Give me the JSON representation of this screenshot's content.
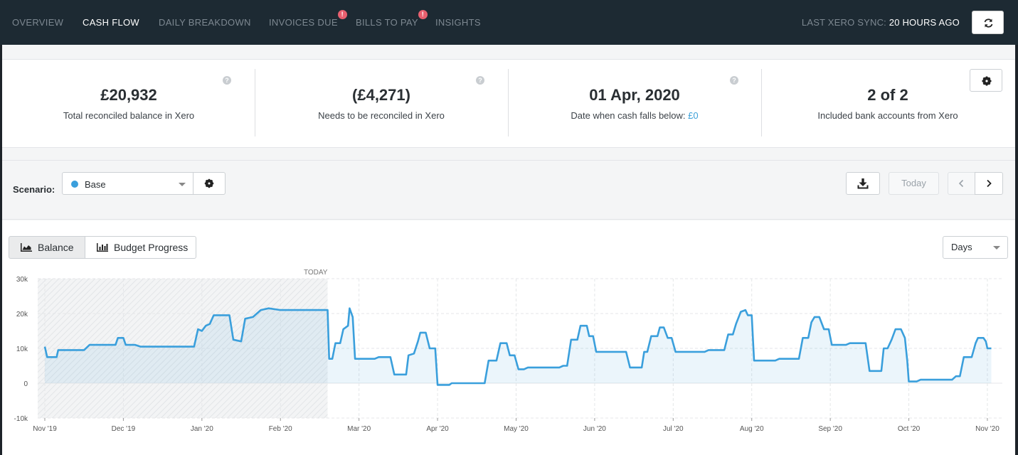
{
  "nav": {
    "items": [
      {
        "label": "OVERVIEW",
        "active": false,
        "alert": false
      },
      {
        "label": "CASH FLOW",
        "active": true,
        "alert": false
      },
      {
        "label": "DAILY BREAKDOWN",
        "active": false,
        "alert": false
      },
      {
        "label": "INVOICES DUE",
        "active": false,
        "alert": true
      },
      {
        "label": "BILLS TO PAY",
        "active": false,
        "alert": true
      },
      {
        "label": "INSIGHTS",
        "active": false,
        "alert": false
      }
    ],
    "alert_symbol": "!",
    "sync_label": "LAST XERO SYNC:",
    "sync_value": "20 HOURS AGO"
  },
  "stats": [
    {
      "value": "£20,932",
      "label": "Total reconciled balance in Xero"
    },
    {
      "value": "(£4,271)",
      "label": "Needs to be reconciled in Xero"
    },
    {
      "value": "01 Apr, 2020",
      "label": "Date when cash falls below:",
      "link": "£0"
    },
    {
      "value": "2 of 2",
      "label": "Included bank accounts from Xero"
    }
  ],
  "help_symbol": "?",
  "scenario": {
    "label": "Scenario:",
    "selected": "Base",
    "dot_color": "#3a9fdc"
  },
  "toolbar": {
    "today_label": "Today"
  },
  "tabs": {
    "balance": "Balance",
    "budget": "Budget Progress"
  },
  "period": {
    "selected": "Days"
  },
  "colors": {
    "accent": "#3a9fdc",
    "nav_bg": "#1d2a33",
    "alert": "#e8606f"
  },
  "chart_data": {
    "type": "area",
    "title": "",
    "xlabel": "",
    "ylabel": "",
    "ylim": [
      -10000,
      30000
    ],
    "yticks": [
      -10000,
      0,
      10000,
      20000,
      30000
    ],
    "ytick_labels": [
      "-10k",
      "0",
      "10k",
      "20k",
      "30k"
    ],
    "xtick_labels": [
      "Nov '19",
      "Dec '19",
      "Jan '20",
      "Feb '20",
      "Mar '20",
      "Apr '20",
      "May '20",
      "Jun '20",
      "Jul '20",
      "Aug '20",
      "Sep '20",
      "Oct '20",
      "Nov '20"
    ],
    "today_label": "TODAY",
    "today_index": 3.6,
    "xlim": [
      0,
      12.1
    ],
    "series": [
      {
        "name": "Balance",
        "points": [
          [
            0.0,
            10500
          ],
          [
            0.03,
            7500
          ],
          [
            0.15,
            7500
          ],
          [
            0.17,
            9500
          ],
          [
            0.5,
            9500
          ],
          [
            0.57,
            11000
          ],
          [
            0.9,
            11000
          ],
          [
            0.93,
            13000
          ],
          [
            1.0,
            13000
          ],
          [
            1.03,
            11000
          ],
          [
            1.15,
            11000
          ],
          [
            1.22,
            10500
          ],
          [
            1.9,
            10500
          ],
          [
            1.95,
            15500
          ],
          [
            2.0,
            15000
          ],
          [
            2.05,
            16500
          ],
          [
            2.1,
            17000
          ],
          [
            2.15,
            19500
          ],
          [
            2.35,
            19500
          ],
          [
            2.4,
            12500
          ],
          [
            2.5,
            12000
          ],
          [
            2.55,
            18500
          ],
          [
            2.65,
            19000
          ],
          [
            2.75,
            21000
          ],
          [
            2.85,
            21500
          ],
          [
            3.0,
            21000
          ],
          [
            3.6,
            21000
          ],
          [
            3.62,
            7000
          ],
          [
            3.66,
            7000
          ],
          [
            3.7,
            11500
          ],
          [
            3.76,
            11500
          ],
          [
            3.8,
            15500
          ],
          [
            3.86,
            16500
          ],
          [
            3.88,
            21500
          ],
          [
            3.92,
            19000
          ],
          [
            3.95,
            7000
          ],
          [
            4.2,
            7000
          ],
          [
            4.25,
            7500
          ],
          [
            4.4,
            7500
          ],
          [
            4.45,
            2500
          ],
          [
            4.6,
            2500
          ],
          [
            4.63,
            8000
          ],
          [
            4.7,
            8500
          ],
          [
            4.75,
            12000
          ],
          [
            4.78,
            14500
          ],
          [
            4.85,
            14500
          ],
          [
            4.9,
            10000
          ],
          [
            4.97,
            10000
          ],
          [
            5.0,
            -500
          ],
          [
            5.15,
            -500
          ],
          [
            5.18,
            0
          ],
          [
            5.6,
            0
          ],
          [
            5.65,
            6500
          ],
          [
            5.75,
            6500
          ],
          [
            5.8,
            11500
          ],
          [
            5.88,
            11500
          ],
          [
            5.92,
            8000
          ],
          [
            5.98,
            8000
          ],
          [
            6.03,
            4000
          ],
          [
            6.1,
            4000
          ],
          [
            6.15,
            4500
          ],
          [
            6.55,
            4500
          ],
          [
            6.6,
            5000
          ],
          [
            6.65,
            5000
          ],
          [
            6.7,
            12500
          ],
          [
            6.78,
            12500
          ],
          [
            6.82,
            16500
          ],
          [
            6.9,
            16500
          ],
          [
            6.93,
            13500
          ],
          [
            6.98,
            13500
          ],
          [
            7.02,
            9000
          ],
          [
            7.4,
            9000
          ],
          [
            7.45,
            4500
          ],
          [
            7.6,
            4500
          ],
          [
            7.63,
            9000
          ],
          [
            7.67,
            9000
          ],
          [
            7.72,
            13500
          ],
          [
            7.8,
            13500
          ],
          [
            7.83,
            16000
          ],
          [
            7.88,
            16000
          ],
          [
            7.93,
            13000
          ],
          [
            7.98,
            13000
          ],
          [
            8.03,
            9000
          ],
          [
            8.4,
            9000
          ],
          [
            8.45,
            9500
          ],
          [
            8.65,
            9500
          ],
          [
            8.7,
            14000
          ],
          [
            8.76,
            14000
          ],
          [
            8.8,
            17000
          ],
          [
            8.86,
            20500
          ],
          [
            8.92,
            21000
          ],
          [
            8.95,
            19500
          ],
          [
            9.0,
            19500
          ],
          [
            9.03,
            6500
          ],
          [
            9.3,
            6500
          ],
          [
            9.35,
            7000
          ],
          [
            9.6,
            7000
          ],
          [
            9.65,
            13000
          ],
          [
            9.72,
            13000
          ],
          [
            9.76,
            17500
          ],
          [
            9.8,
            19000
          ],
          [
            9.86,
            19000
          ],
          [
            9.92,
            15500
          ],
          [
            9.98,
            15500
          ],
          [
            10.02,
            11000
          ],
          [
            10.2,
            11000
          ],
          [
            10.25,
            11500
          ],
          [
            10.45,
            11500
          ],
          [
            10.5,
            3500
          ],
          [
            10.65,
            3500
          ],
          [
            10.68,
            10000
          ],
          [
            10.73,
            10000
          ],
          [
            10.78,
            12500
          ],
          [
            10.83,
            15500
          ],
          [
            10.9,
            15500
          ],
          [
            10.95,
            13000
          ],
          [
            10.98,
            6500
          ],
          [
            11.0,
            500
          ],
          [
            11.1,
            500
          ],
          [
            11.15,
            1000
          ],
          [
            11.55,
            1000
          ],
          [
            11.6,
            2000
          ],
          [
            11.65,
            2000
          ],
          [
            11.7,
            7500
          ],
          [
            11.8,
            7500
          ],
          [
            11.85,
            11500
          ],
          [
            11.88,
            13000
          ],
          [
            11.95,
            13000
          ],
          [
            11.98,
            12000
          ],
          [
            12.0,
            10000
          ],
          [
            12.05,
            10000
          ]
        ]
      }
    ]
  }
}
